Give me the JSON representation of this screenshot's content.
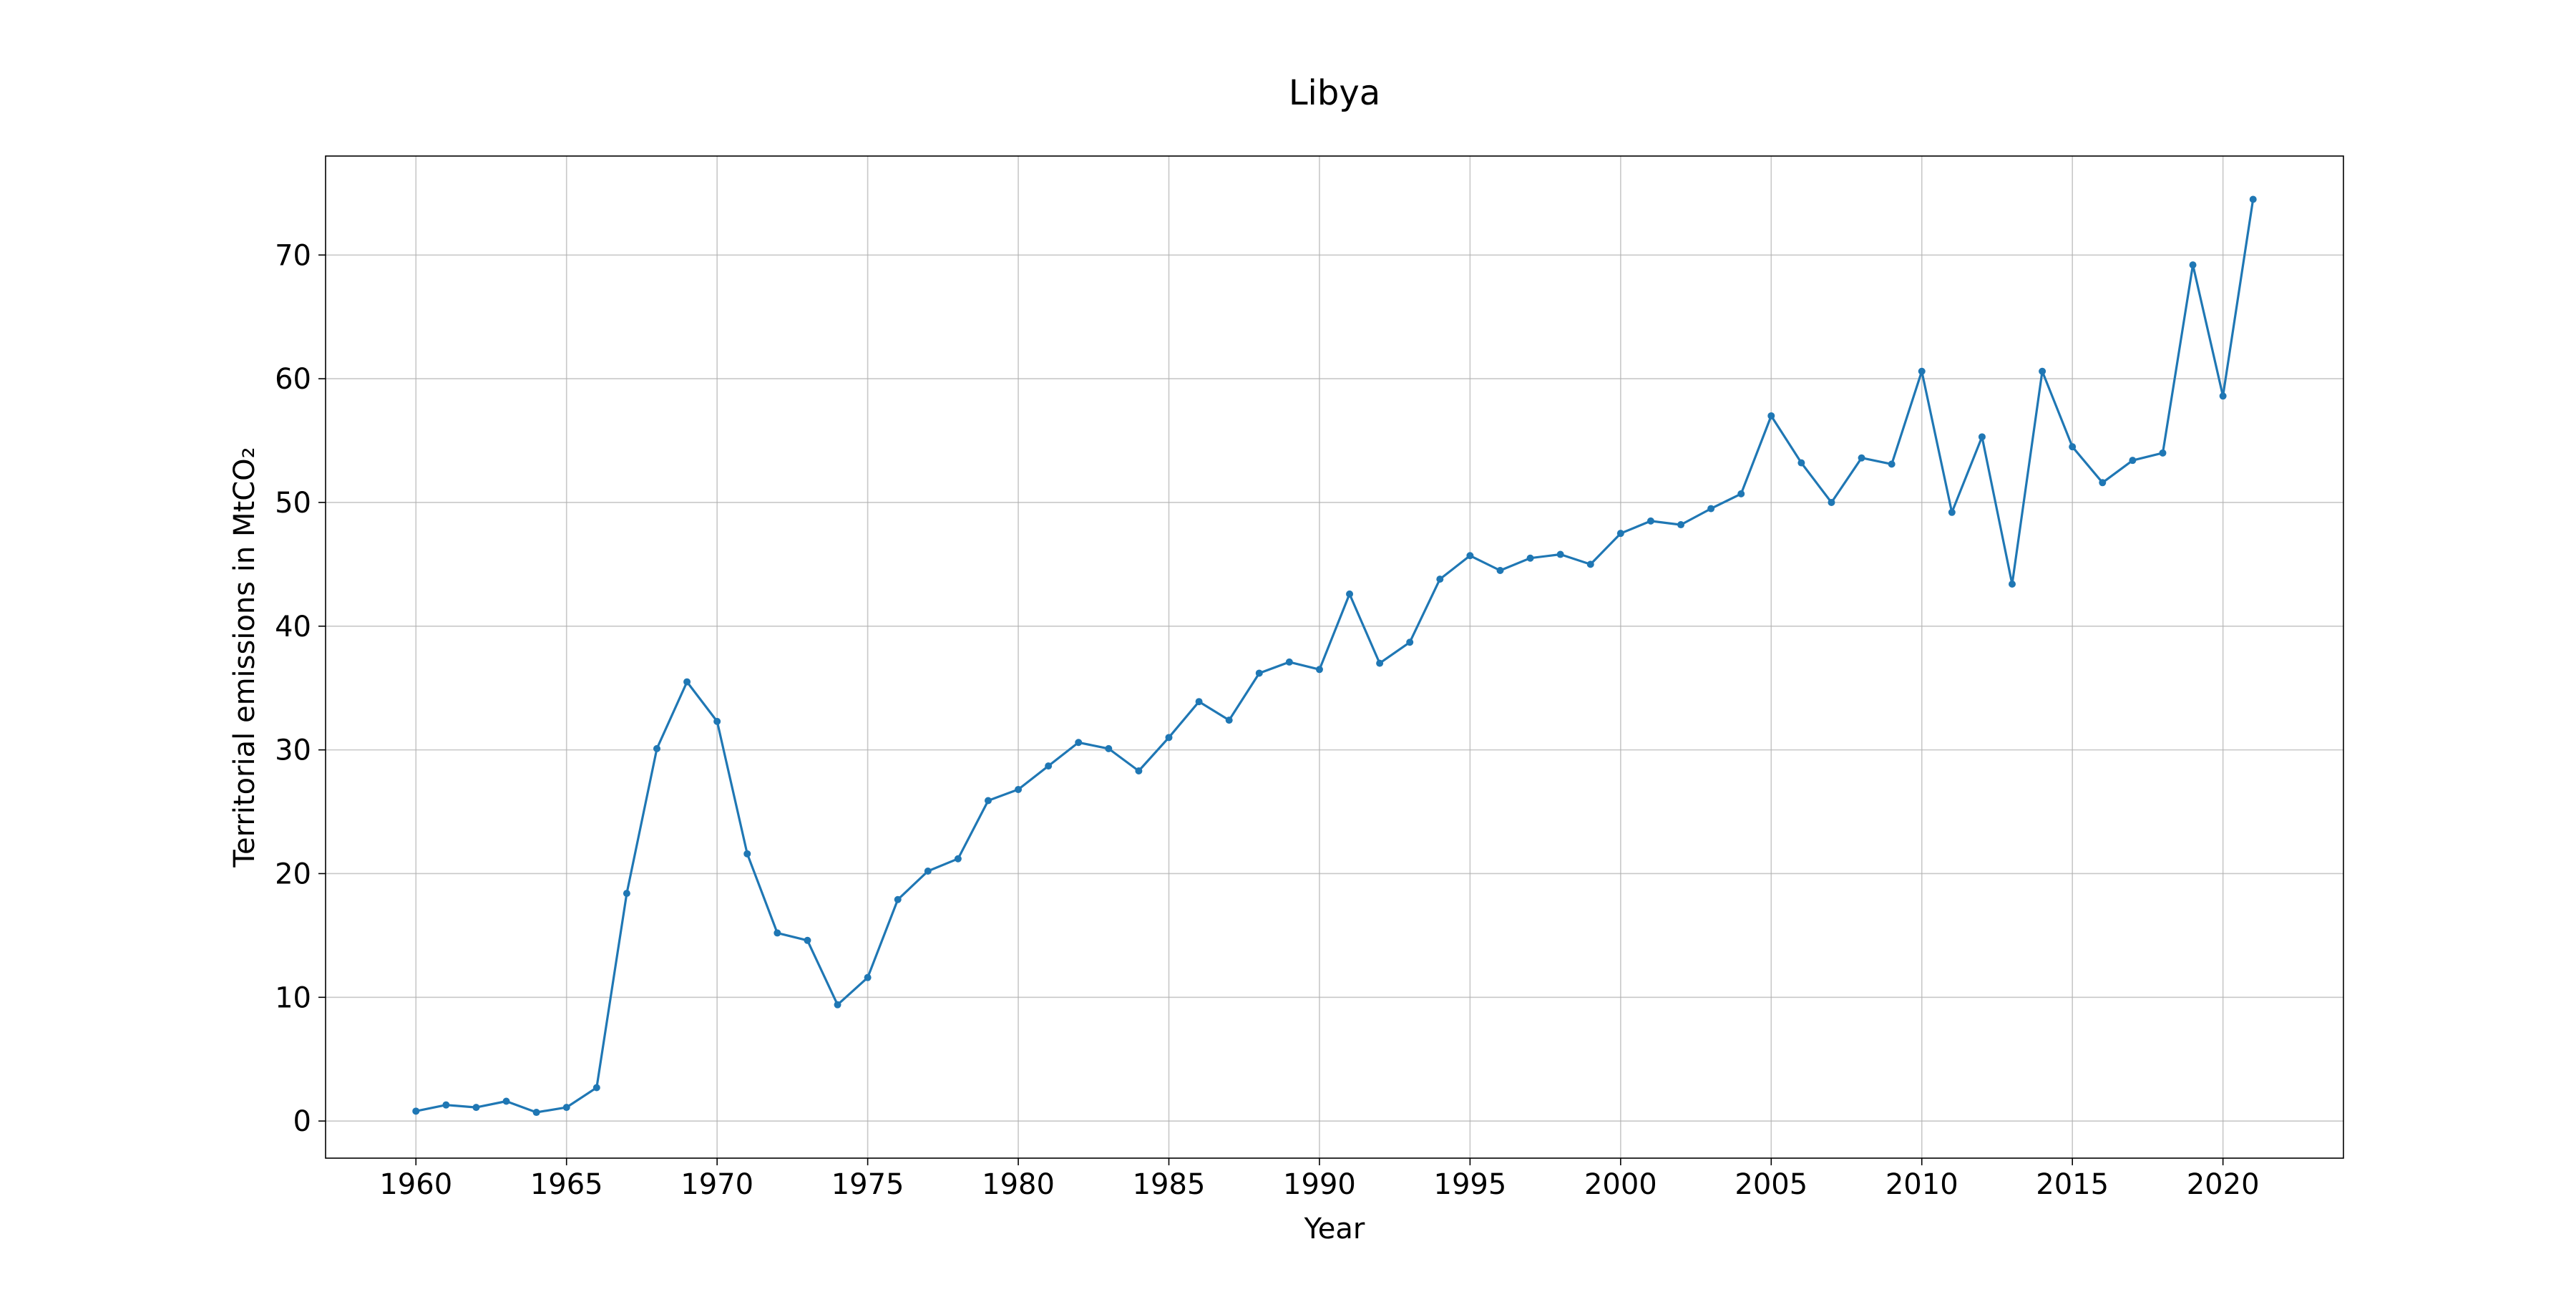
{
  "chart_data": {
    "type": "line",
    "title": "Libya",
    "xlabel": "Year",
    "ylabel": "Territorial emissions in MtCO₂",
    "xlim": [
      1957,
      2024
    ],
    "ylim": [
      -3,
      78
    ],
    "xticks": [
      1960,
      1965,
      1970,
      1975,
      1980,
      1985,
      1990,
      1995,
      2000,
      2005,
      2010,
      2015,
      2020
    ],
    "yticks": [
      0,
      10,
      20,
      30,
      40,
      50,
      60,
      70
    ],
    "xtick_labels": [
      "1960",
      "1965",
      "1970",
      "1975",
      "1980",
      "1985",
      "1990",
      "1995",
      "2000",
      "2005",
      "2010",
      "2015",
      "2020"
    ],
    "ytick_labels": [
      "0",
      "10",
      "20",
      "30",
      "40",
      "50",
      "60",
      "70"
    ],
    "grid": true,
    "color": "#1f77b4",
    "series": [
      {
        "x": [
          1960,
          1961,
          1962,
          1963,
          1964,
          1965,
          1966,
          1967,
          1968,
          1969,
          1970,
          1971,
          1972,
          1973,
          1974,
          1975,
          1976,
          1977,
          1978,
          1979,
          1980,
          1981,
          1982,
          1983,
          1984,
          1985,
          1986,
          1987,
          1988,
          1989,
          1990,
          1991,
          1992,
          1993,
          1994,
          1995,
          1996,
          1997,
          1998,
          1999,
          2000,
          2001,
          2002,
          2003,
          2004,
          2005,
          2006,
          2007,
          2008,
          2009,
          2010,
          2011,
          2012,
          2013,
          2014,
          2015,
          2016,
          2017,
          2018,
          2019,
          2020,
          2021
        ],
        "y": [
          0.8,
          1.3,
          1.1,
          1.6,
          0.7,
          1.1,
          2.7,
          18.4,
          30.1,
          35.5,
          32.3,
          21.6,
          15.2,
          14.6,
          9.4,
          11.6,
          17.9,
          20.2,
          21.2,
          25.9,
          26.8,
          28.7,
          30.6,
          30.1,
          28.3,
          31.0,
          33.9,
          32.4,
          36.2,
          37.1,
          36.5,
          42.6,
          37.0,
          38.7,
          43.8,
          45.7,
          44.5,
          45.5,
          45.8,
          45.0,
          47.5,
          48.5,
          48.2,
          49.5,
          50.7,
          57.0,
          53.2,
          50.0,
          53.6,
          53.1,
          60.6,
          49.2,
          55.3,
          43.4,
          60.6,
          54.5,
          51.6,
          53.4,
          54.0,
          69.2,
          58.6,
          74.5
        ]
      }
    ]
  }
}
